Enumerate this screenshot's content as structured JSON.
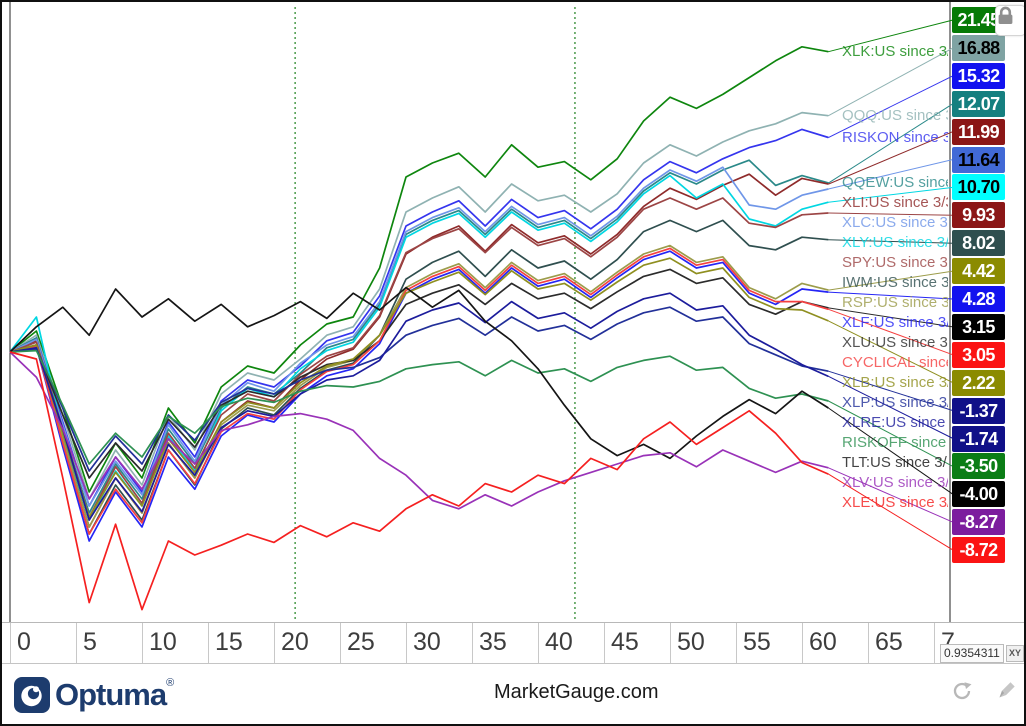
{
  "icons": {
    "lock": "padlock-icon",
    "refresh": "refresh-arrow-icon",
    "edit": "pencil-icon",
    "brand_mark": "optuma-swirl-icon"
  },
  "footer": {
    "brand": "Optuma",
    "registered": "®",
    "watermark": "MarketGauge.com"
  },
  "axis": {
    "ticks": [
      "0",
      "5",
      "10",
      "15",
      "20",
      "25",
      "30",
      "35",
      "40",
      "45",
      "50",
      "55",
      "60",
      "65",
      "7"
    ],
    "readout": "0.9354311",
    "xy_button": "XY"
  },
  "chart_data": {
    "type": "line",
    "title": "",
    "xlabel": "",
    "ylabel": "",
    "x_range": [
      0,
      70
    ],
    "ylim": [
      -19,
      23
    ],
    "grid": false,
    "legend_position": "right-labels",
    "vline_days": [
      21.6,
      42.8
    ],
    "vline_color": "#2e8b2e",
    "x": [
      0,
      2,
      4,
      6,
      8,
      10,
      12,
      14,
      16,
      18,
      20,
      22,
      24,
      26,
      28,
      30,
      32,
      34,
      36,
      38,
      40,
      42,
      44,
      46,
      48,
      50,
      52,
      54,
      56,
      58,
      60,
      62
    ],
    "series": [
      {
        "name": "XLK",
        "label": "XLK:US since 3/",
        "value_label": "21.45",
        "color": "#0e860e",
        "badge_bg": "#067a06",
        "badge_fg": "#ffffff",
        "values": [
          0,
          1.5,
          -4,
          -10,
          -6.5,
          -9,
          -4,
          -6.5,
          -2.5,
          -1,
          -1.5,
          0.5,
          2,
          2.5,
          6,
          12.5,
          13.5,
          14.2,
          12.5,
          14.8,
          13.2,
          13.6,
          12.3,
          13.8,
          16.5,
          18.2,
          17.4,
          18.4,
          19.6,
          20.8,
          21.8,
          21.45
        ]
      },
      {
        "name": "QQQ",
        "label": "QQQ:US since 3",
        "value_label": "16.88",
        "color": "#8fb2b2",
        "badge_bg": "#7fa3a3",
        "badge_fg": "#000000",
        "values": [
          0,
          1.2,
          -4.5,
          -10.5,
          -7,
          -9.5,
          -4.5,
          -7,
          -3,
          -1.5,
          -2,
          -0.5,
          1.2,
          1.8,
          4.5,
          10,
          11,
          11.8,
          10,
          12,
          10.8,
          11.2,
          10,
          11.3,
          13.5,
          14.8,
          14,
          15,
          15.8,
          16.3,
          17.1,
          16.88
        ]
      },
      {
        "name": "RISKON",
        "label": "RISKON since 3/",
        "value_label": "15.32",
        "color": "#3535ee",
        "badge_bg": "#1212ef",
        "badge_fg": "#ffffff",
        "values": [
          0,
          1,
          -5,
          -11,
          -7.5,
          -10,
          -5,
          -7.5,
          -3.5,
          -2,
          -2.5,
          -1,
          0.8,
          1.4,
          4,
          9,
          10,
          10.8,
          9,
          10.9,
          9.6,
          10.1,
          8.8,
          10.2,
          12.3,
          13.6,
          12.8,
          13.8,
          14.6,
          15.1,
          15.9,
          15.32
        ]
      },
      {
        "name": "QQEW",
        "label": "QQEW:US since",
        "value_label": "12.07",
        "color": "#2a8989",
        "badge_bg": "#157f7f",
        "badge_fg": "#ffffff",
        "values": [
          0,
          1,
          -5.5,
          -11.5,
          -8,
          -10.5,
          -5.5,
          -8,
          -4,
          -2.5,
          -3,
          -1.5,
          0.3,
          0.9,
          3.4,
          8.4,
          9.4,
          10.1,
          8.4,
          10.2,
          8.9,
          9.4,
          8.1,
          9.5,
          11.5,
          12.8,
          12,
          13,
          13.7,
          11.9,
          12.6,
          12.07
        ]
      },
      {
        "name": "XLI",
        "label": "XLI:US since 3/3",
        "value_label": "11.99",
        "color": "#8f2b2b",
        "badge_bg": "#8b1616",
        "badge_fg": "#ffffff",
        "values": [
          0,
          0.8,
          -6,
          -12.5,
          -9,
          -11.5,
          -6.5,
          -9,
          -5,
          -3.5,
          -4,
          -2,
          -0.5,
          0.2,
          2.5,
          7,
          8.2,
          9,
          7.2,
          9.1,
          7.8,
          8.3,
          7,
          8.4,
          10.4,
          11.7,
          10.9,
          11.9,
          12.7,
          11.2,
          12.4,
          11.99
        ]
      },
      {
        "name": "XLC",
        "label": "XLC:US since 3/",
        "value_label": "11.64",
        "color": "#6f96e8",
        "badge_bg": "#4169d6",
        "badge_fg": "#000000",
        "values": [
          0,
          0.9,
          -5.2,
          -11,
          -7.8,
          -10.2,
          -5.2,
          -7.8,
          -3.8,
          -2.2,
          -2.8,
          -0.8,
          0.5,
          1.1,
          3.6,
          8.6,
          9.6,
          10.3,
          8.6,
          10.4,
          9.1,
          9.6,
          8.3,
          9.7,
          11.7,
          13,
          12.2,
          13.2,
          10.5,
          10.2,
          11.2,
          11.64
        ]
      },
      {
        "name": "XLY",
        "label": "XLY:US since 3/",
        "value_label": "10.70",
        "color": "#00d7e2",
        "badge_bg": "#00ffff",
        "badge_fg": "#000000",
        "values": [
          0,
          2.5,
          -5.8,
          -12,
          -8.5,
          -11,
          -6,
          -8.5,
          -4.2,
          -2.6,
          -3.2,
          -1.2,
          0.1,
          0.7,
          3.2,
          8.2,
          9.2,
          9.9,
          8.2,
          10,
          8.7,
          9.2,
          7.9,
          9.3,
          11.3,
          12.6,
          11,
          12,
          9.5,
          9,
          10.2,
          10.7
        ]
      },
      {
        "name": "SPY",
        "label": "SPY:US since 3/",
        "value_label": "9.93",
        "color": "#9c4545",
        "badge_bg": "#8b1616",
        "badge_fg": "#ffffff",
        "values": [
          0,
          0.7,
          -5.5,
          -11.8,
          -8.2,
          -10.8,
          -5.8,
          -8.3,
          -4.5,
          -3,
          -3.5,
          -1.6,
          -0.3,
          0.3,
          2.6,
          7.1,
          8.1,
          8.8,
          7.1,
          8.9,
          7.6,
          8.1,
          6.8,
          8.2,
          10.2,
          11,
          10.2,
          11,
          9.2,
          8.9,
          9.8,
          9.93
        ]
      },
      {
        "name": "IWM",
        "label": "IWM:US since 3",
        "value_label": "8.02",
        "color": "#2f4f4f",
        "badge_bg": "#2f4f4f",
        "badge_fg": "#ffffff",
        "values": [
          0,
          0.5,
          -6.5,
          -13,
          -9.5,
          -12,
          -7,
          -9.5,
          -5.5,
          -4,
          -4.5,
          -2.6,
          -1.3,
          -0.8,
          1.2,
          5.2,
          6.4,
          7.2,
          5.4,
          7.3,
          6,
          6.5,
          5.2,
          6.6,
          8.6,
          9.4,
          8.6,
          9.4,
          7.6,
          7.3,
          8.2,
          8.02
        ]
      },
      {
        "name": "RSP",
        "label": "RSP:US since 3/",
        "value_label": "4.42",
        "color": "#9c9c4a",
        "badge_bg": "#8b8b00",
        "badge_fg": "#ffffff",
        "values": [
          0,
          0.5,
          -6.2,
          -12.5,
          -9,
          -11.5,
          -6.5,
          -9,
          -5.2,
          -3.8,
          -4.2,
          -2.4,
          -1.1,
          -0.6,
          1.2,
          4.6,
          5.6,
          6.3,
          4.6,
          6.4,
          5.1,
          5.6,
          4.3,
          5.7,
          7,
          7.6,
          6.4,
          6.8,
          4.6,
          3.8,
          4.9,
          4.42
        ]
      },
      {
        "name": "XLF",
        "label": "XLF:US since 3/",
        "value_label": "4.28",
        "color": "#2525f5",
        "badge_bg": "#1212ef",
        "badge_fg": "#ffffff",
        "values": [
          0,
          0.4,
          -6.8,
          -13.5,
          -10,
          -12.5,
          -7.5,
          -9.8,
          -6,
          -4.5,
          -5,
          -3,
          -1.7,
          -1.2,
          0.6,
          4.2,
          5.2,
          5.9,
          4.2,
          6,
          4.7,
          5.2,
          3.9,
          5.3,
          6.6,
          7.2,
          6,
          6.4,
          4.2,
          3.4,
          4.5,
          4.28
        ]
      },
      {
        "name": "XLU",
        "label": "XLU:US since 3",
        "value_label": "3.15",
        "color": "#2b2b2b",
        "badge_bg": "#000000",
        "badge_fg": "#ffffff",
        "values": [
          0,
          0.3,
          -4.5,
          -9,
          -6.5,
          -8.5,
          -4.8,
          -6.8,
          -3.8,
          -2.8,
          -3.2,
          -1.8,
          -0.9,
          -0.6,
          0.8,
          3.4,
          4.2,
          4.8,
          3.4,
          4.9,
          3.8,
          4.2,
          3.1,
          4.3,
          5.4,
          5.9,
          4.9,
          5.3,
          3.4,
          2.7,
          3.6,
          3.15
        ]
      },
      {
        "name": "CYCLICAL",
        "label": "CYCLICAL since",
        "value_label": "3.05",
        "color": "#f54040",
        "badge_bg": "#fb1414",
        "badge_fg": "#ffffff",
        "values": [
          0,
          0.4,
          -6.5,
          -13,
          -9.8,
          -12.2,
          -7,
          -9.4,
          -5.7,
          -4.4,
          -4.8,
          -2.7,
          -1.4,
          -0.9,
          0.8,
          4.4,
          5.4,
          6.1,
          4.4,
          6.2,
          4.9,
          5.4,
          4.1,
          5.5,
          6.8,
          7.4,
          6.2,
          6.6,
          4.4,
          3.6,
          3.6,
          3.05
        ]
      },
      {
        "name": "XLB",
        "label": "XLB:US since 3/",
        "value_label": "2.22",
        "color": "#8f8f20",
        "badge_bg": "#8b8b00",
        "badge_fg": "#ffffff",
        "values": [
          0,
          0.5,
          -5.8,
          -11.8,
          -8.6,
          -11,
          -6.2,
          -8.6,
          -5,
          -3.6,
          -4,
          -2.2,
          -1,
          -0.5,
          1.2,
          4.2,
          5,
          5.7,
          4.1,
          5.8,
          4.5,
          4.9,
          3.7,
          5,
          6.2,
          6.7,
          5.6,
          6,
          3.9,
          3.1,
          3,
          2.22
        ]
      },
      {
        "name": "XLP",
        "label": "XLP:US since 3/",
        "value_label": "-1.37",
        "color": "#223099",
        "badge_bg": "#101088",
        "badge_fg": "#ffffff",
        "values": [
          0,
          0.2,
          -4,
          -8.5,
          -6,
          -8,
          -4.5,
          -6.3,
          -3.6,
          -2.6,
          -3,
          -2,
          -1.3,
          -1.1,
          -0.4,
          1.2,
          1.9,
          2.4,
          1.2,
          2.5,
          1.5,
          1.9,
          0.9,
          2,
          2.8,
          3.2,
          2.2,
          2.5,
          0.6,
          -0.2,
          -1,
          -1.37
        ]
      },
      {
        "name": "XLRE",
        "label": "XLRE:US since 3",
        "value_label": "-1.74",
        "color": "#1c1c9c",
        "badge_bg": "#101088",
        "badge_fg": "#ffffff",
        "values": [
          0,
          0.3,
          -5.5,
          -12,
          -9,
          -11.4,
          -6.6,
          -8.8,
          -5.4,
          -4.2,
          -4.6,
          -3,
          -2,
          -1.7,
          -0.6,
          2.2,
          3,
          3.5,
          2.1,
          3.6,
          2.4,
          2.8,
          1.7,
          2.9,
          3.8,
          4.2,
          3,
          3.3,
          1.2,
          0.2,
          -0.9,
          -1.74
        ]
      },
      {
        "name": "RISKOFF",
        "label": "RISKOFF since 3",
        "value_label": "-3.50",
        "color": "#2e9152",
        "badge_bg": "#0b7d16",
        "badge_fg": "#ffffff",
        "values": [
          0,
          0.1,
          -3.8,
          -8,
          -5.8,
          -7.5,
          -4.6,
          -5.8,
          -3.9,
          -3.3,
          -3.6,
          -2.8,
          -2.4,
          -2.5,
          -2.1,
          -1.2,
          -0.9,
          -0.7,
          -1.7,
          -0.6,
          -1.5,
          -1.2,
          -2.1,
          -1.1,
          -0.6,
          -0.3,
          -1.3,
          -1.1,
          -2.6,
          -3.3,
          -3,
          -3.5
        ]
      },
      {
        "name": "TLT",
        "label": "TLT:US since 3/",
        "value_label": "-4.00",
        "color": "#151515",
        "badge_bg": "#000000",
        "badge_fg": "#ffffff",
        "values": [
          0,
          1.8,
          3.2,
          1.2,
          4.5,
          2.5,
          3.8,
          2.2,
          3.4,
          1.8,
          2.6,
          3.6,
          2.4,
          4.2,
          3,
          4.6,
          3.2,
          4.4,
          2.2,
          0.8,
          -1.2,
          -3.8,
          -6.2,
          -7.4,
          -6.6,
          -7.6,
          -6,
          -4.6,
          -3.4,
          -4.4,
          -2.8,
          -4
        ]
      },
      {
        "name": "XLV",
        "label": "XLV:US since 3/",
        "value_label": "-8.27",
        "color": "#9932b8",
        "badge_bg": "#7c1d9e",
        "badge_fg": "#ffffff",
        "values": [
          0,
          -1.8,
          -5.5,
          -10.5,
          -7.5,
          -9.8,
          -6.2,
          -8,
          -5.6,
          -5.2,
          -4.6,
          -4.4,
          -4.8,
          -5.6,
          -7.6,
          -8.8,
          -10.6,
          -11.2,
          -10.2,
          -11,
          -10,
          -9.2,
          -8.6,
          -8,
          -7.4,
          -7.2,
          -8.2,
          -7,
          -7.8,
          -8.6,
          -7.8,
          -8.27
        ]
      },
      {
        "name": "XLE",
        "label": "XLE:US since 3/1",
        "value_label": "-8.72",
        "color": "#f52020",
        "badge_bg": "#fb1414",
        "badge_fg": "#ffffff",
        "values": [
          0,
          -0.5,
          -9,
          -17.9,
          -12.3,
          -18.4,
          -13.5,
          -14.5,
          -13.8,
          -13,
          -13.6,
          -12.4,
          -13.2,
          -12.2,
          -12.8,
          -11.2,
          -10.2,
          -11,
          -9.4,
          -10,
          -8.8,
          -9.4,
          -7.6,
          -8.4,
          -6.2,
          -5,
          -6.6,
          -5.4,
          -4.2,
          -5.8,
          -7.9,
          -8.72
        ]
      }
    ]
  }
}
